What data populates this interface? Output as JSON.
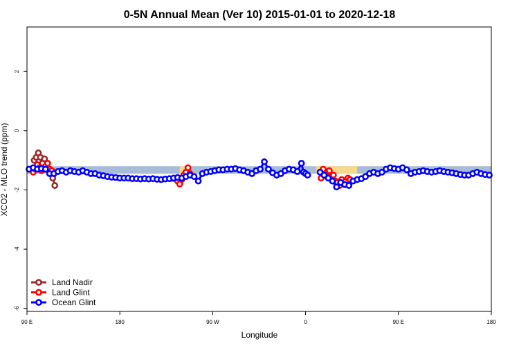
{
  "chart_data": {
    "type": "line",
    "title": "0-5N Annual Mean (Ver 10)   2015-01-01 to 2020-12-18",
    "xlabel": "Longitude",
    "ylabel": "XCO2 - MLO trend (ppm)",
    "xlim": [
      90,
      450
    ],
    "ylim": [
      -6.1,
      3.5
    ],
    "x_ticks": [
      {
        "value": 90,
        "label": "90 E"
      },
      {
        "value": 180,
        "label": "180"
      },
      {
        "value": 270,
        "label": "90 W"
      },
      {
        "value": 360,
        "label": "0"
      },
      {
        "value": 450,
        "label": "90 E"
      },
      {
        "value": 540,
        "label": "180"
      }
    ],
    "y_ticks": [
      {
        "value": 2,
        "label": "2"
      },
      {
        "value": 0,
        "label": "0"
      },
      {
        "value": -2,
        "label": "-2"
      },
      {
        "value": -4,
        "label": "-4"
      },
      {
        "value": -6,
        "label": "-6"
      }
    ],
    "grid": false,
    "legend": "bottom-left",
    "background_bands": [
      {
        "color": "#a8bcd8",
        "x": [
          90,
          540
        ],
        "y": [
          -1.45,
          -1.2
        ]
      },
      {
        "color": "#f5d98c",
        "x": [
          238,
          248
        ],
        "y": [
          -1.45,
          -1.2
        ]
      },
      {
        "color": "#f5d98c",
        "x": [
          370,
          410
        ],
        "y": [
          -1.45,
          -1.2
        ]
      }
    ],
    "series": [
      {
        "name": "Land Nadir",
        "color": "#9b2a2a",
        "x": [
          97,
          99,
          101,
          103,
          105,
          107,
          109,
          113,
          115,
          117
        ],
        "y": [
          -1.0,
          -0.9,
          -0.75,
          -0.9,
          -1.1,
          -0.95,
          -1.2,
          -1.4,
          -1.6,
          -1.85
        ]
      },
      {
        "name": "Land Glint",
        "color": "#ff0000",
        "x": [
          96,
          98,
          100,
          102,
          104,
          106,
          108,
          110,
          112,
          114,
          236,
          238,
          240,
          242,
          244,
          246,
          248
        ],
        "y": [
          -1.4,
          -1.3,
          -1.15,
          -1.25,
          -1.35,
          -1.3,
          -1.2,
          -1.1,
          -1.3,
          -1.35,
          -1.7,
          -1.8,
          -1.65,
          -1.5,
          -1.4,
          -1.25,
          -1.45
        ],
        "x2": [
          375,
          377,
          379,
          381,
          383,
          385,
          387,
          389,
          391,
          393,
          395,
          397,
          399,
          401,
          403
        ],
        "y2": [
          -1.6,
          -1.3,
          -1.45,
          -1.55,
          -1.35,
          -1.6,
          -1.5,
          -1.7,
          -1.75,
          -1.85,
          -1.65,
          -1.8,
          -1.7,
          -1.6,
          -1.65
        ]
      },
      {
        "name": "Ocean Glint",
        "color": "#0000ff",
        "x": [
          92,
          96,
          100,
          104,
          108,
          112,
          116,
          120,
          124,
          128,
          132,
          136,
          140,
          144,
          148,
          152,
          156,
          160,
          164,
          168,
          172,
          176,
          180,
          184,
          188,
          192,
          196,
          200,
          204,
          208,
          212,
          216,
          220,
          224,
          228,
          232,
          236,
          240,
          244,
          248,
          252,
          256,
          260,
          264,
          268,
          272,
          276,
          280,
          284,
          288,
          292,
          296,
          300,
          304,
          308,
          312,
          316,
          320,
          324,
          328,
          332,
          336,
          340,
          344,
          348,
          352,
          356,
          358,
          360,
          362
        ],
        "y": [
          -1.3,
          -1.25,
          -1.3,
          -1.28,
          -1.3,
          -1.45,
          -1.45,
          -1.38,
          -1.35,
          -1.4,
          -1.35,
          -1.38,
          -1.4,
          -1.35,
          -1.4,
          -1.45,
          -1.45,
          -1.5,
          -1.52,
          -1.55,
          -1.57,
          -1.58,
          -1.6,
          -1.6,
          -1.6,
          -1.62,
          -1.62,
          -1.63,
          -1.62,
          -1.63,
          -1.62,
          -1.64,
          -1.65,
          -1.63,
          -1.62,
          -1.6,
          -1.58,
          -1.6,
          -1.55,
          -1.5,
          -1.55,
          -1.7,
          -1.45,
          -1.4,
          -1.38,
          -1.35,
          -1.32,
          -1.32,
          -1.3,
          -1.3,
          -1.28,
          -1.32,
          -1.35,
          -1.4,
          -1.45,
          -1.35,
          -1.3,
          -1.05,
          -1.3,
          -1.42,
          -1.5,
          -1.45,
          -1.35,
          -1.3,
          -1.32,
          -1.38,
          -1.1,
          -1.4,
          -1.45,
          -1.5
        ],
        "x2": [
          374,
          378,
          382,
          386,
          390,
          394,
          398,
          402,
          406,
          410,
          414,
          418,
          422,
          426,
          430,
          434,
          438,
          442,
          446,
          450,
          454,
          458,
          462,
          466,
          470,
          474,
          478,
          482,
          486,
          490,
          494,
          498,
          502,
          506,
          510,
          514,
          518,
          522,
          526,
          530,
          534,
          538
        ],
        "y2": [
          -1.4,
          -1.5,
          -1.6,
          -1.7,
          -1.9,
          -1.75,
          -1.82,
          -1.85,
          -1.7,
          -1.65,
          -1.62,
          -1.55,
          -1.45,
          -1.4,
          -1.45,
          -1.4,
          -1.3,
          -1.25,
          -1.28,
          -1.3,
          -1.25,
          -1.32,
          -1.45,
          -1.4,
          -1.38,
          -1.35,
          -1.38,
          -1.4,
          -1.38,
          -1.35,
          -1.38,
          -1.4,
          -1.42,
          -1.45,
          -1.48,
          -1.5,
          -1.5,
          -1.45,
          -1.4,
          -1.45,
          -1.48,
          -1.5
        ]
      }
    ]
  }
}
